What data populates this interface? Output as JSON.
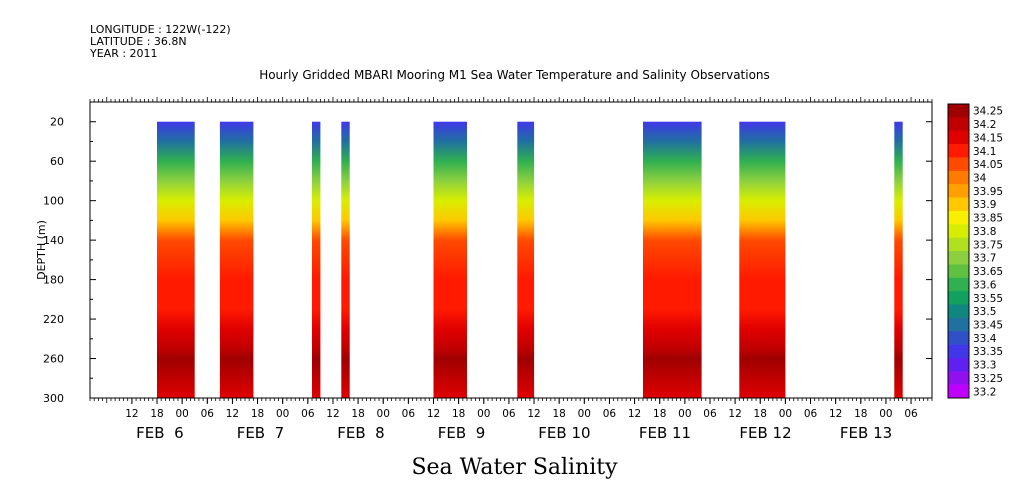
{
  "header": {
    "longitude": "LONGITUDE : 122W(-122)",
    "latitude": "LATITUDE : 36.8N",
    "year": "YEAR : 2011"
  },
  "chart_data": {
    "type": "heatmap",
    "title": "Hourly Gridded MBARI Mooring M1 Sea Water Temperature and Salinity Observations",
    "bottom_title": "Sea Water Salinity",
    "ylabel": "DEPTH (m)",
    "y_ticks": [
      "20",
      "60",
      "100",
      "140",
      "180",
      "220",
      "260",
      "300"
    ],
    "ylim": [
      300,
      0
    ],
    "x_hour_ticks": [
      "12",
      "18",
      "00",
      "06",
      "12",
      "18",
      "00",
      "06",
      "12",
      "18",
      "00",
      "06",
      "12",
      "18",
      "00",
      "06",
      "12",
      "18",
      "00",
      "06",
      "12",
      "18",
      "00",
      "06",
      "12",
      "18",
      "00",
      "06",
      "12",
      "18",
      "00",
      "06"
    ],
    "x_hour_values": [
      12,
      18,
      24,
      30,
      36,
      42,
      48,
      54,
      60,
      66,
      72,
      78,
      84,
      90,
      96,
      102,
      108,
      114,
      120,
      126,
      132,
      138,
      144,
      150,
      156,
      162,
      168,
      174,
      180,
      186,
      192,
      198
    ],
    "x_date_labels": [
      {
        "label": "FEB  6",
        "hour": 24
      },
      {
        "label": "FEB  7",
        "hour": 48
      },
      {
        "label": "FEB  8",
        "hour": 72
      },
      {
        "label": "FEB  9",
        "hour": 96
      },
      {
        "label": "FEB 10",
        "hour": 120
      },
      {
        "label": "FEB 11",
        "hour": 144
      },
      {
        "label": "FEB 12",
        "hour": 168
      },
      {
        "label": "FEB 13",
        "hour": 192
      }
    ],
    "xlim_hours": [
      2,
      203
    ],
    "data_segments_hours": [
      [
        18,
        27
      ],
      [
        33,
        41
      ],
      [
        55,
        57
      ],
      [
        62,
        64
      ],
      [
        84,
        92
      ],
      [
        104,
        108
      ],
      [
        134,
        148
      ],
      [
        157,
        168
      ],
      [
        194,
        196
      ]
    ],
    "colorbar": {
      "levels": [
        "34.25",
        "34.2",
        "34.15",
        "34.1",
        "34.05",
        "34",
        "33.95",
        "33.9",
        "33.85",
        "33.8",
        "33.75",
        "33.7",
        "33.65",
        "33.6",
        "33.55",
        "33.5",
        "33.45",
        "33.4",
        "33.35",
        "33.3",
        "33.25",
        "33.2"
      ],
      "colors": [
        "#a00000",
        "#c00000",
        "#e00000",
        "#ff1a00",
        "#ff4a00",
        "#ff7a00",
        "#ffa000",
        "#ffc800",
        "#f8f000",
        "#d8ee00",
        "#b0e020",
        "#8cd040",
        "#60c040",
        "#30b050",
        "#10a060",
        "#108880",
        "#2070a0",
        "#3050c8",
        "#4038e8",
        "#6020f0",
        "#9010f0",
        "#c000ff"
      ]
    },
    "salinity_profile_by_depth": [
      {
        "depth": 20,
        "value": 33.35
      },
      {
        "depth": 40,
        "value": 33.45
      },
      {
        "depth": 60,
        "value": 33.6
      },
      {
        "depth": 80,
        "value": 33.7
      },
      {
        "depth": 100,
        "value": 33.8
      },
      {
        "depth": 120,
        "value": 33.9
      },
      {
        "depth": 140,
        "value": 34.05
      },
      {
        "depth": 180,
        "value": 34.1
      },
      {
        "depth": 210,
        "value": 34.1
      },
      {
        "depth": 230,
        "value": 34.15
      },
      {
        "depth": 250,
        "value": 34.2
      },
      {
        "depth": 260,
        "value": 34.25
      },
      {
        "depth": 280,
        "value": 34.2
      },
      {
        "depth": 300,
        "value": 34.15
      }
    ]
  }
}
